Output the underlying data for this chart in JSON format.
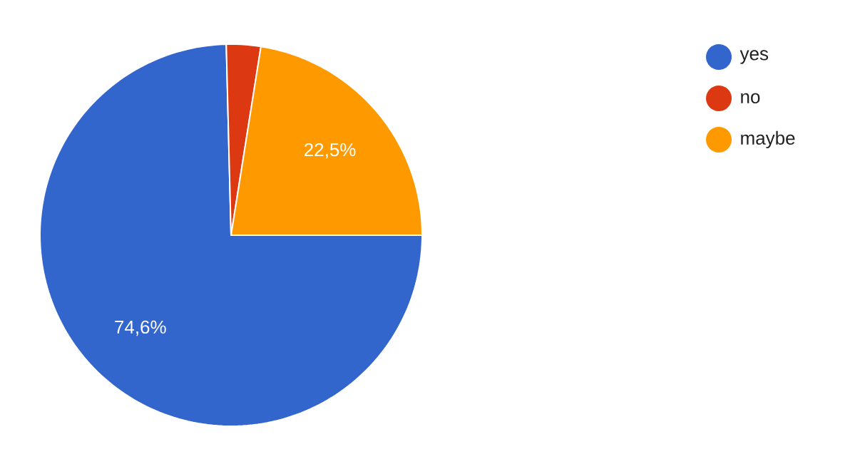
{
  "chart_data": {
    "type": "pie",
    "categories": [
      "yes",
      "no",
      "maybe"
    ],
    "values": [
      74.6,
      2.9,
      22.5
    ],
    "colors": [
      "#3366cc",
      "#dc3912",
      "#ff9900"
    ],
    "value_labels": [
      "74,6%",
      null,
      "22,5%"
    ],
    "legend": "top right"
  }
}
